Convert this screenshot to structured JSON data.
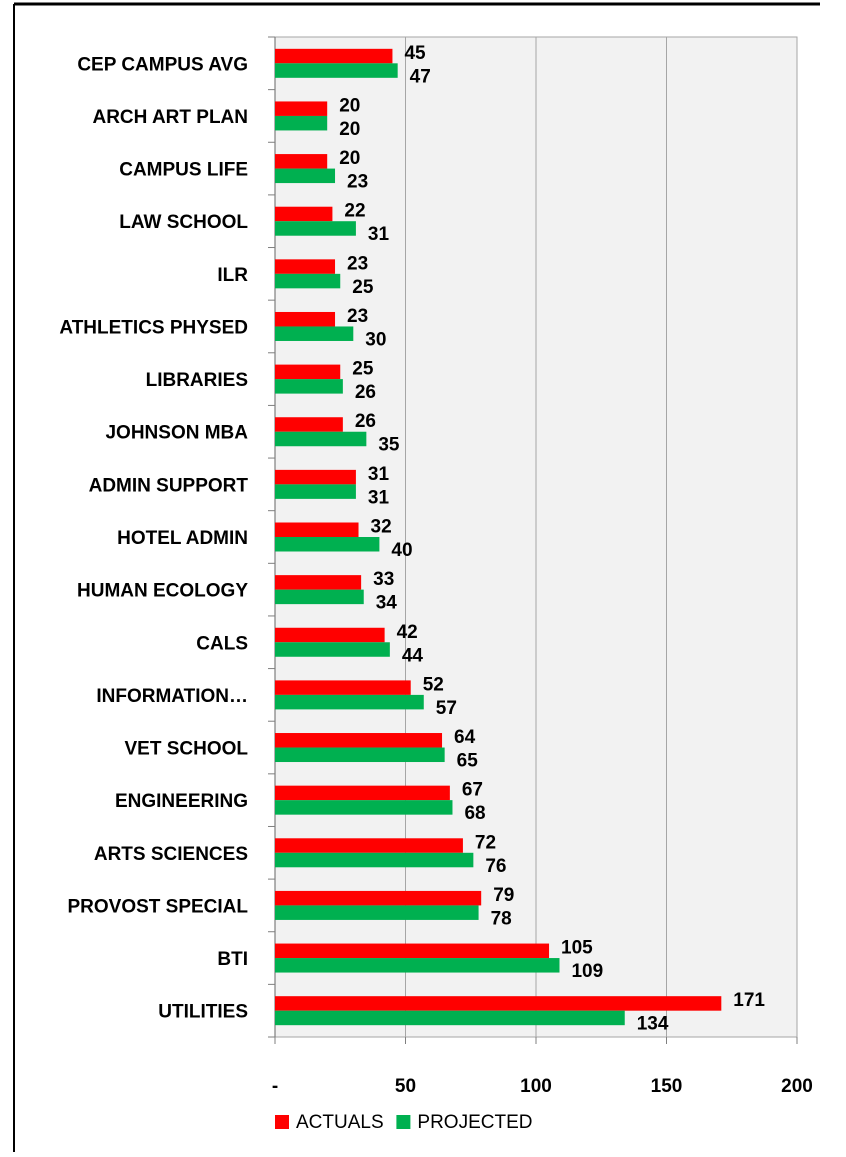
{
  "chart_data": {
    "type": "bar",
    "orientation": "horizontal",
    "categories": [
      "CEP CAMPUS AVG",
      "ARCH ART PLAN",
      "CAMPUS LIFE",
      "LAW SCHOOL",
      "ILR",
      "ATHLETICS PHYSED",
      "LIBRARIES",
      "JOHNSON MBA",
      "ADMIN SUPPORT",
      "HOTEL ADMIN",
      "HUMAN ECOLOGY",
      "CALS",
      "INFORMATION…",
      "VET SCHOOL",
      "ENGINEERING",
      "ARTS SCIENCES",
      "PROVOST SPECIAL",
      "BTI",
      "UTILITIES"
    ],
    "series": [
      {
        "name": "ACTUALS",
        "color": "#ff0000",
        "values": [
          45,
          20,
          20,
          22,
          23,
          23,
          25,
          26,
          31,
          32,
          33,
          42,
          52,
          64,
          67,
          72,
          79,
          105,
          171
        ]
      },
      {
        "name": "PROJECTED",
        "color": "#00b050",
        "values": [
          47,
          20,
          23,
          31,
          25,
          30,
          26,
          35,
          31,
          40,
          34,
          44,
          57,
          65,
          68,
          76,
          78,
          109,
          134
        ]
      }
    ],
    "xlim": [
      0,
      200
    ],
    "xticks": [
      0,
      50,
      100,
      150,
      200
    ],
    "xtick_labels": [
      "-",
      "50",
      "100",
      "150",
      "200"
    ],
    "grid": true,
    "plot_background": "#f2f2f2",
    "gridline_color": "#a6a6a6",
    "legend_position": "bottom"
  }
}
